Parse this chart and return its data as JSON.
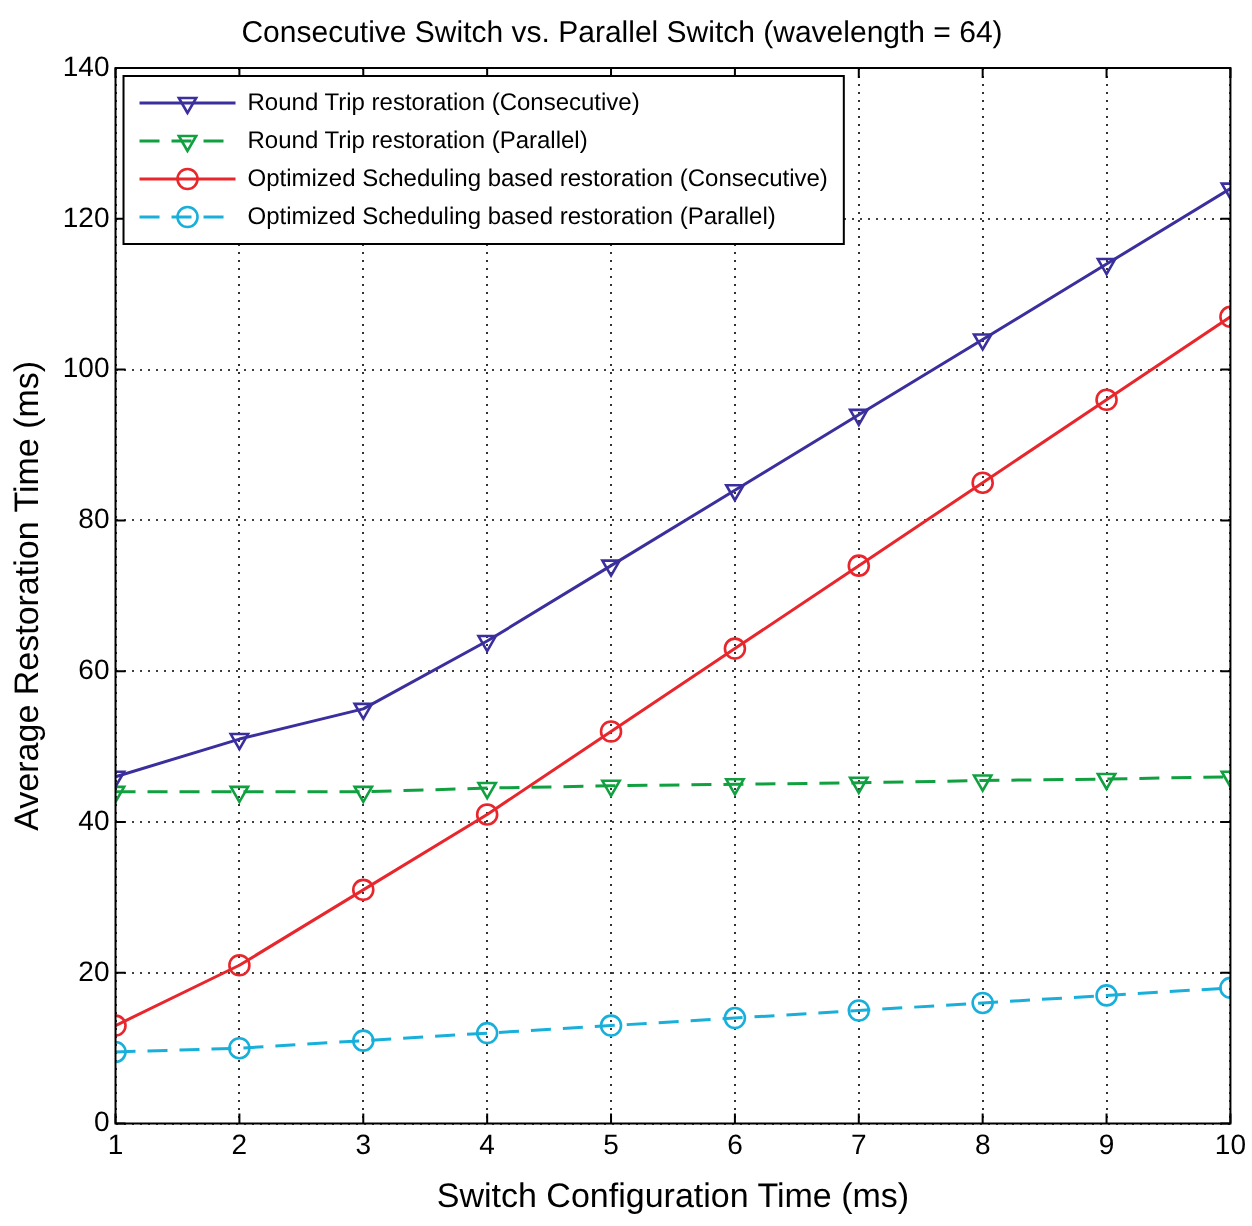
{
  "chart_data": {
    "type": "line",
    "title": "Consecutive Switch vs. Parallel Switch (wavelength = 64)",
    "xlabel": "Switch Configuration Time (ms)",
    "ylabel": "Average Restoration Time (ms)",
    "x": [
      1,
      2,
      3,
      4,
      5,
      6,
      7,
      8,
      9,
      10
    ],
    "series": [
      {
        "name": "Round Trip restoration (Consecutive)",
        "color": "#3b2f9e",
        "marker": "triangle",
        "line_style": "solid",
        "values": [
          46,
          51,
          55,
          64,
          74,
          84,
          94,
          104,
          114,
          124
        ]
      },
      {
        "name": "Round Trip restoration (Parallel)",
        "color": "#10a040",
        "marker": "triangle",
        "line_style": "dashed",
        "values": [
          44,
          44,
          44,
          44.5,
          44.8,
          45,
          45.2,
          45.5,
          45.7,
          46
        ]
      },
      {
        "name": "Optimized Scheduling based restoration (Consecutive)",
        "color": "#e8262c",
        "marker": "circle",
        "line_style": "solid",
        "values": [
          13,
          21,
          31,
          41,
          52,
          63,
          74,
          85,
          96,
          107
        ]
      },
      {
        "name": "Optimized Scheduling based restoration (Parallel)",
        "color": "#18b0da",
        "marker": "circle",
        "line_style": "dashed",
        "values": [
          9.5,
          10,
          11,
          12,
          13,
          14,
          15,
          16,
          17,
          18
        ]
      }
    ],
    "xlim": [
      1,
      10
    ],
    "xticks": [
      1,
      2,
      3,
      4,
      5,
      6,
      7,
      8,
      9,
      10
    ],
    "ylim": [
      0,
      140
    ],
    "yticks": [
      0,
      20,
      40,
      60,
      80,
      100,
      120,
      140
    ],
    "grid": true,
    "legend": "top left"
  }
}
